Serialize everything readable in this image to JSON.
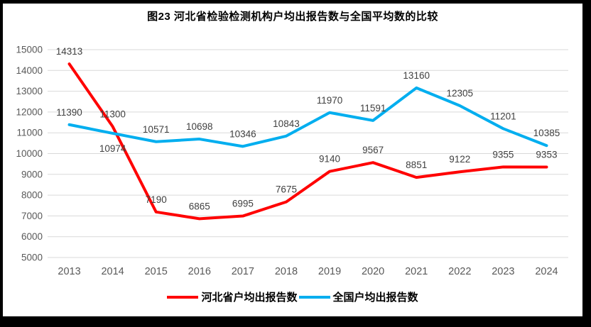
{
  "chart_data": {
    "type": "line",
    "title": "图23  河北省检验检测机构户均出报告数与全国平均数的比较",
    "categories": [
      "2013",
      "2014",
      "2015",
      "2016",
      "2017",
      "2018",
      "2019",
      "2020",
      "2021",
      "2022",
      "2023",
      "2024"
    ],
    "series": [
      {
        "name": "河北省户均出报告数",
        "color": "#FF0000",
        "values": [
          14313,
          11300,
          7190,
          6865,
          6995,
          7675,
          9140,
          9567,
          8851,
          9122,
          9355,
          9353
        ],
        "labels_below": []
      },
      {
        "name": "全国户均出报告数",
        "color": "#00AEEF",
        "values": [
          11390,
          10974,
          10571,
          10698,
          10346,
          10843,
          11970,
          11591,
          13160,
          12305,
          11201,
          10385
        ],
        "labels_below": [
          1
        ]
      }
    ],
    "ylim": [
      5000,
      15000
    ],
    "ytick_step": 1000,
    "grid": true,
    "legend_position": "bottom",
    "gridline_color": "#D9D9D9",
    "axis_label_color": "#595959",
    "data_label_color": "#404040",
    "background_color": "#FFFFFF",
    "frame_color": "#000000"
  }
}
